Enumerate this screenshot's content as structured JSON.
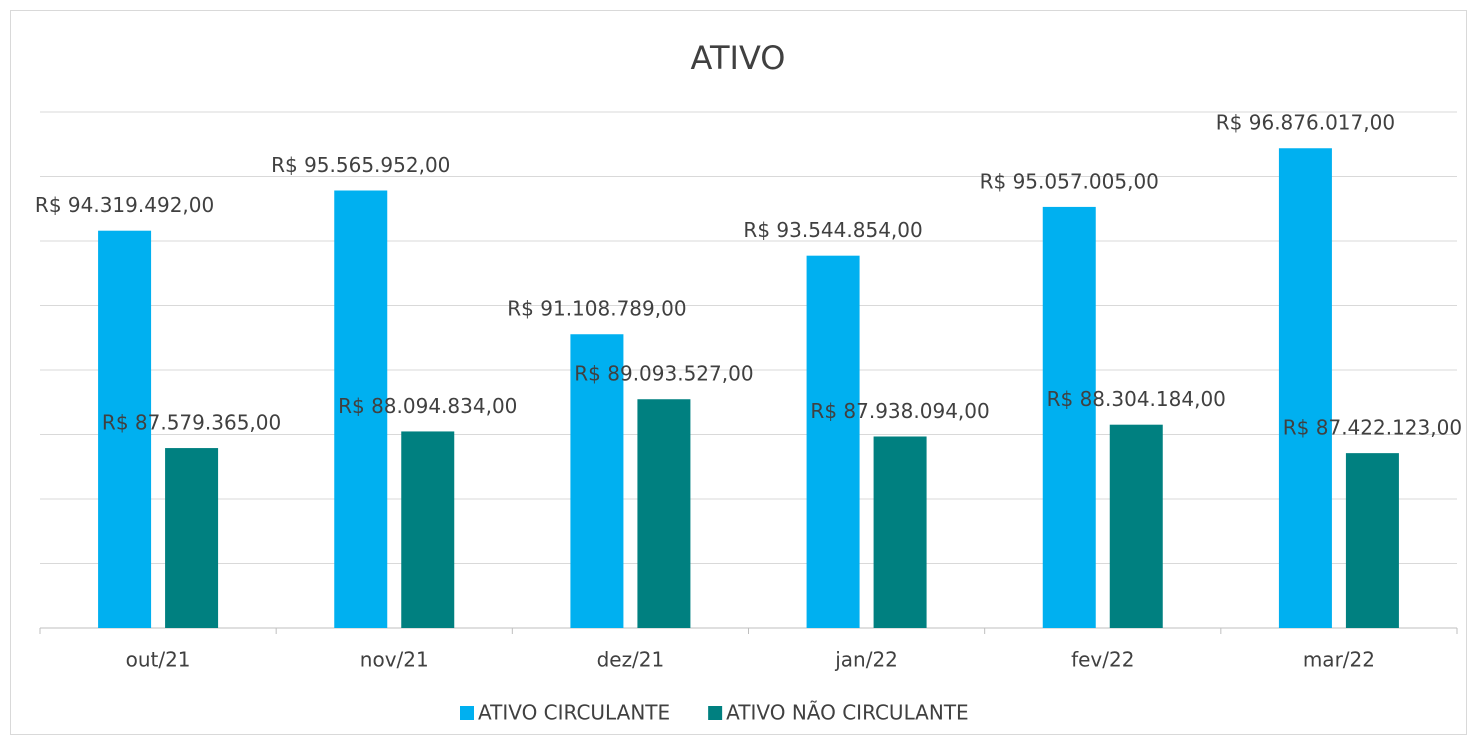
{
  "chart_data": {
    "type": "bar",
    "title": "ATIVO",
    "categories": [
      "out/21",
      "nov/21",
      "dez/21",
      "jan/22",
      "fev/22",
      "mar/22"
    ],
    "series": [
      {
        "name": "ATIVO CIRCULANTE",
        "color": "#00b0f0",
        "values": [
          94319492,
          95565952,
          91108789,
          93544854,
          95057005,
          96876017
        ],
        "value_labels": [
          "R$ 94.319.492,00",
          "R$ 95.565.952,00",
          "R$ 91.108.789,00",
          "R$ 93.544.854,00",
          "R$ 95.057.005,00",
          "R$ 96.876.017,00"
        ]
      },
      {
        "name": "ATIVO NÃO CIRCULANTE",
        "color": "#008080",
        "values": [
          87579365,
          88094834,
          89093527,
          87938094,
          88304184,
          87422123
        ],
        "value_labels": [
          "R$ 87.579.365,00",
          "R$ 88.094.834,00",
          "R$ 89.093.527,00",
          "R$ 87.938.094,00",
          "R$ 88.304.184,00",
          "R$ 87.422.123,00"
        ]
      }
    ],
    "ylim": [
      82000000,
      98000000
    ],
    "yticks": [
      82000000,
      84000000,
      86000000,
      88000000,
      90000000,
      92000000,
      94000000,
      96000000,
      98000000
    ],
    "grid": true,
    "legend": "bottom"
  }
}
